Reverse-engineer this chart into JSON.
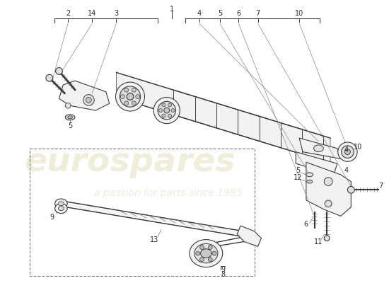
{
  "bg_color": "#ffffff",
  "line_color": "#3a3a3a",
  "mid_gray": "#888888",
  "fill_light": "#f2f2f2",
  "fill_mid": "#e0e0e0",
  "fill_dark": "#c8c8c8",
  "watermark_orange": "#d4c090",
  "watermark_gray": "#c0b8a0"
}
